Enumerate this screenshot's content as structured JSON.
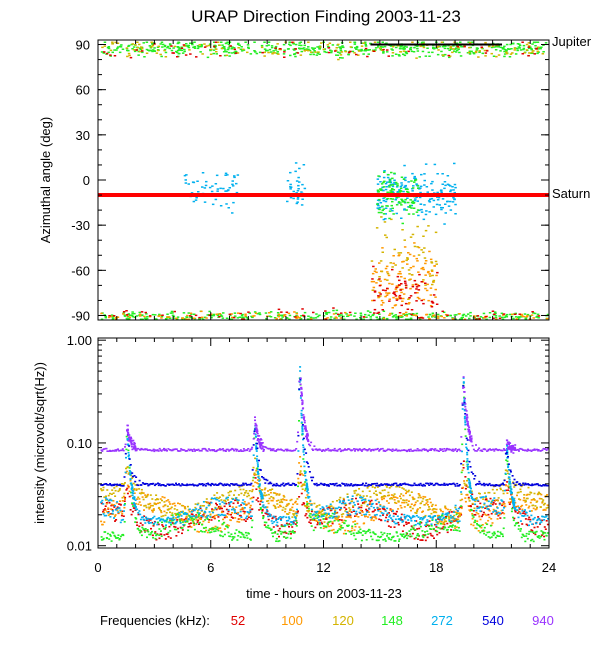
{
  "chart_data": [
    {
      "type": "scatter",
      "title": "URAP Direction Finding  2003-11-23",
      "ylabel": "Azimuthal angle (deg)",
      "xlim": [
        0,
        24
      ],
      "ylim": [
        -93,
        93
      ],
      "x_ticks": [
        0,
        6,
        12,
        18,
        24
      ],
      "y_ticks": [
        90,
        60,
        30,
        0,
        -30,
        -60,
        -90
      ],
      "y_tick_labels": [
        "90",
        "60",
        "30",
        "0",
        "-30",
        "-60",
        "-90"
      ],
      "reference_lines": [
        {
          "label": "Jupiter",
          "angle_deg": 90,
          "color": "#000000"
        },
        {
          "label": "Saturn",
          "angle_deg": -10,
          "color": "#ff0000"
        }
      ],
      "clusters": [
        {
          "freq_khz": 148,
          "x_range": [
            0.1,
            23.9
          ],
          "y_center": 88,
          "y_spread": 5,
          "count": 520
        },
        {
          "freq_khz": 120,
          "x_range": [
            0.1,
            23.9
          ],
          "y_center": 87,
          "y_spread": 6,
          "count": 160
        },
        {
          "freq_khz": 52,
          "x_range": [
            0.1,
            23.9
          ],
          "y_center": 86,
          "y_spread": 6,
          "count": 60
        },
        {
          "freq_khz": 148,
          "x_range": [
            0.1,
            23.9
          ],
          "y_center": -90,
          "y_spread": 3,
          "count": 320
        },
        {
          "freq_khz": 100,
          "x_range": [
            0.1,
            23.9
          ],
          "y_center": -90,
          "y_spread": 3,
          "count": 110
        },
        {
          "freq_khz": 52,
          "x_range": [
            0.1,
            23.9
          ],
          "y_center": -89,
          "y_spread": 4,
          "count": 60
        },
        {
          "freq_khz": 272,
          "x_range": [
            4.5,
            7.5
          ],
          "y_center": -5,
          "y_spread": 14,
          "count": 60
        },
        {
          "freq_khz": 272,
          "x_range": [
            10,
            11
          ],
          "y_center": -5,
          "y_spread": 14,
          "count": 35
        },
        {
          "freq_khz": 272,
          "x_range": [
            14.8,
            19
          ],
          "y_center": -8,
          "y_spread": 16,
          "count": 200
        },
        {
          "freq_khz": 148,
          "x_range": [
            14.8,
            17
          ],
          "y_center": -10,
          "y_spread": 14,
          "count": 120
        },
        {
          "freq_khz": 100,
          "x_range": [
            14.5,
            18
          ],
          "y_center": -65,
          "y_spread": 22,
          "count": 120
        },
        {
          "freq_khz": 120,
          "x_range": [
            14.5,
            18
          ],
          "y_center": -50,
          "y_spread": 25,
          "count": 60
        },
        {
          "freq_khz": 52,
          "x_range": [
            14.5,
            18
          ],
          "y_center": -75,
          "y_spread": 15,
          "count": 60
        }
      ]
    },
    {
      "type": "line",
      "ylabel": "intensity (microvolt/sqrt(Hz))",
      "xlabel": "time - hours on 2003-11-23",
      "xlim": [
        0,
        24
      ],
      "ylim": [
        0.0095,
        1.05
      ],
      "y_scale": "log",
      "x_ticks": [
        0,
        6,
        12,
        18,
        24
      ],
      "x_tick_labels": [
        "0",
        "6",
        "12",
        "18",
        "24"
      ],
      "y_ticks": [
        0.01,
        0.1,
        1.0
      ],
      "y_tick_labels": [
        "0.01",
        "0.10",
        "1.00"
      ],
      "bursts": [
        {
          "x": 1.5,
          "peak": 0.15
        },
        {
          "x": 8.3,
          "peak": 0.17
        },
        {
          "x": 10.7,
          "peak": 0.55
        },
        {
          "x": 19.4,
          "peak": 0.45
        },
        {
          "x": 21.7,
          "peak": 0.1
        }
      ],
      "series": [
        {
          "freq_khz": 52,
          "base": 0.019
        },
        {
          "freq_khz": 100,
          "base": 0.022
        },
        {
          "freq_khz": 120,
          "base": 0.027
        },
        {
          "freq_khz": 148,
          "base": 0.014
        },
        {
          "freq_khz": 272,
          "base": 0.02
        },
        {
          "freq_khz": 540,
          "base": 0.04
        },
        {
          "freq_khz": 940,
          "base": 0.087
        }
      ]
    }
  ],
  "legend": {
    "title": "Frequencies (kHz):",
    "items": [
      {
        "label": "52",
        "color": "#e00000"
      },
      {
        "label": "100",
        "color": "#ff9900"
      },
      {
        "label": "120",
        "color": "#d4b400"
      },
      {
        "label": "148",
        "color": "#22ee22"
      },
      {
        "label": "272",
        "color": "#00b0ee"
      },
      {
        "label": "540",
        "color": "#0000dd"
      },
      {
        "label": "940",
        "color": "#9933ff"
      }
    ]
  }
}
